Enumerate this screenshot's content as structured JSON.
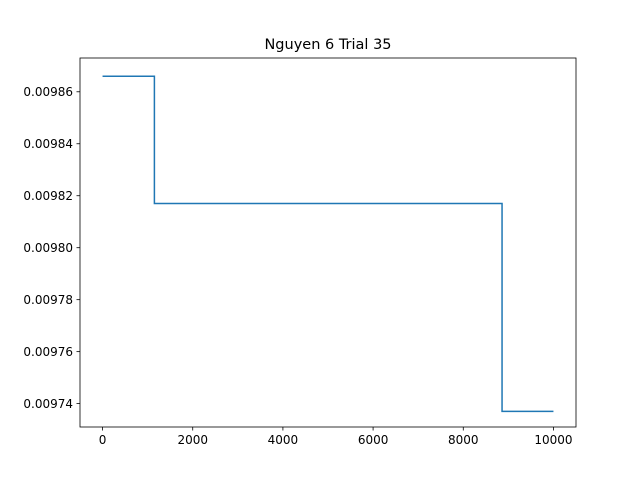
{
  "chart_data": {
    "type": "line",
    "title": "Nguyen 6 Trial 35",
    "xlabel": "",
    "ylabel": "",
    "xlim": [
      -500,
      10500
    ],
    "ylim": [
      0.009731,
      0.009873
    ],
    "xticks": [
      0,
      2000,
      4000,
      6000,
      8000,
      10000
    ],
    "xtick_labels": [
      "0",
      "2000",
      "4000",
      "6000",
      "8000",
      "10000"
    ],
    "yticks": [
      0.00974,
      0.00976,
      0.00978,
      0.0098,
      0.00982,
      0.00984,
      0.00986
    ],
    "ytick_labels": [
      "0.00974",
      "0.00976",
      "0.00978",
      "0.00980",
      "0.00982",
      "0.00984",
      "0.00986"
    ],
    "grid": false,
    "step": "post",
    "series": [
      {
        "color": "#1f77b4",
        "x": [
          0,
          1150,
          8860,
          10000
        ],
        "y": [
          0.009866,
          0.009817,
          0.009737,
          0.009737
        ]
      }
    ]
  }
}
